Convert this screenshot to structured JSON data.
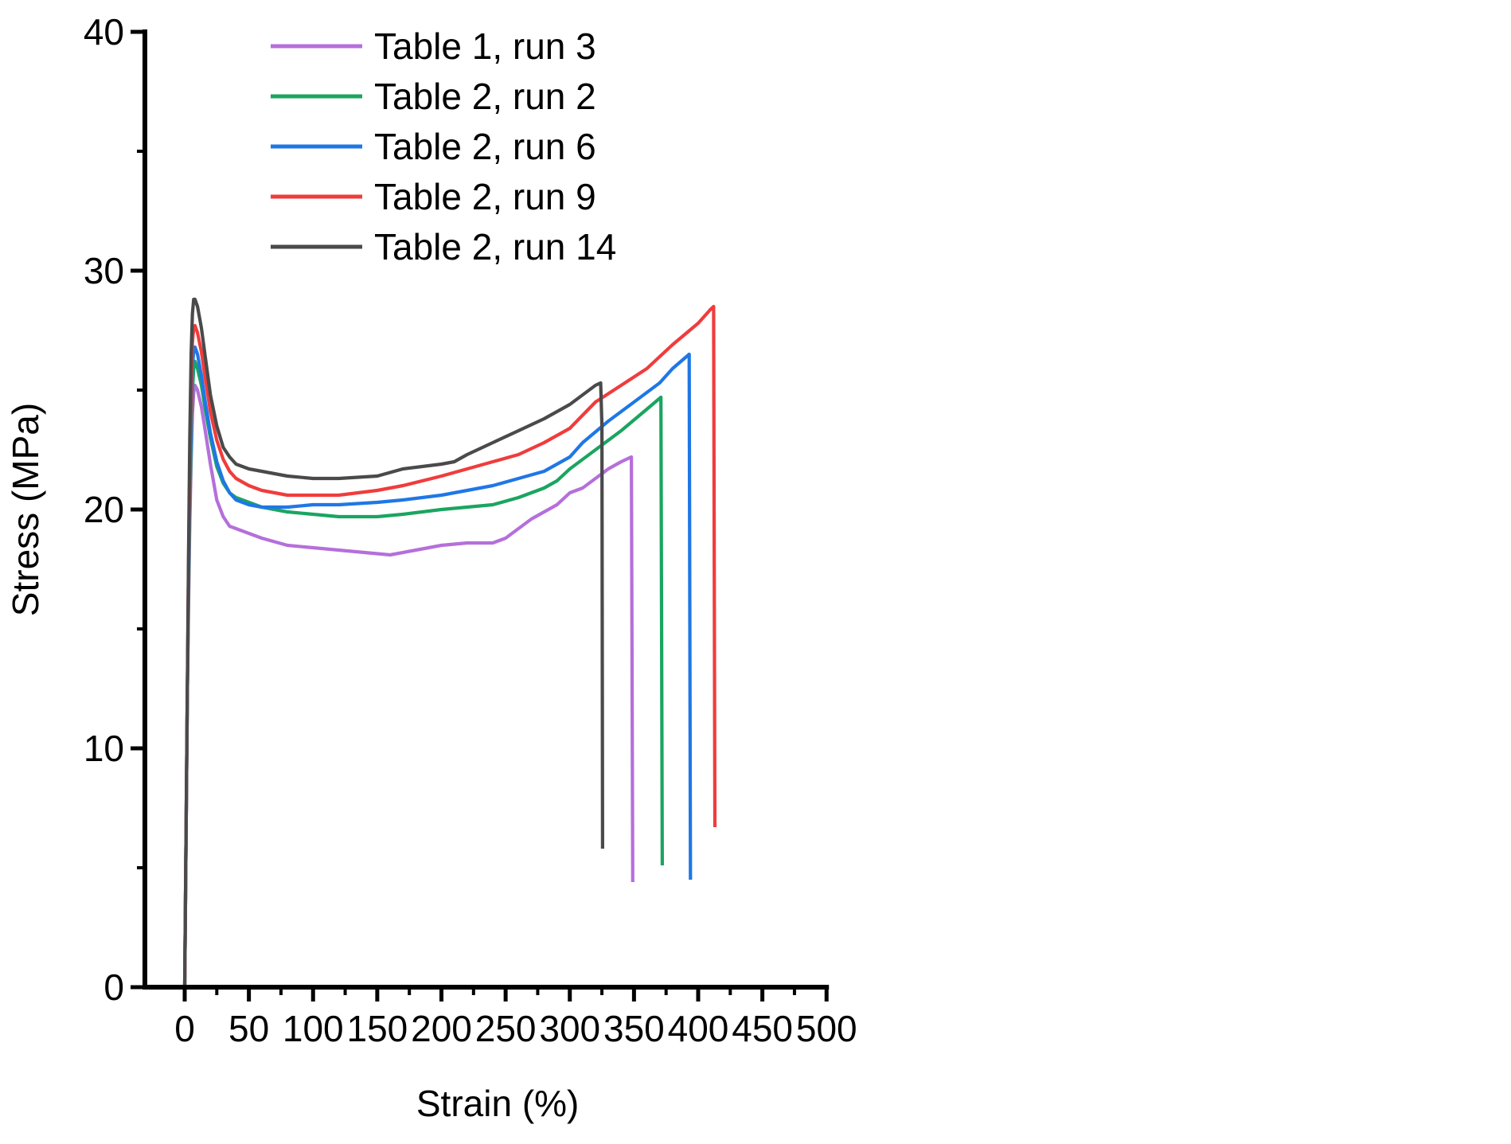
{
  "chart_data": {
    "type": "line",
    "title": "",
    "xlabel": "Strain (%)",
    "ylabel": "Stress (MPa)",
    "xlim": [
      -10,
      500
    ],
    "ylim": [
      0,
      40
    ],
    "x_ticks": [
      0,
      50,
      100,
      150,
      200,
      250,
      300,
      350,
      400,
      450,
      500
    ],
    "y_ticks": [
      0,
      10,
      20,
      30,
      40
    ],
    "x_tick_labels": [
      "0",
      "50",
      "100",
      "150",
      "200",
      "250",
      "300",
      "350",
      "400",
      "450",
      "500"
    ],
    "y_tick_labels": [
      "0",
      "10",
      "20",
      "30",
      "40"
    ],
    "grid": false,
    "legend_position": "top-left",
    "series": [
      {
        "name": "Table 1, run 3",
        "color": "#b56fdb",
        "points": [
          [
            0,
            0
          ],
          [
            1,
            6
          ],
          [
            2,
            12
          ],
          [
            3,
            16
          ],
          [
            4,
            19.5
          ],
          [
            5,
            22
          ],
          [
            6,
            24
          ],
          [
            7,
            24.9
          ],
          [
            8,
            25.2
          ],
          [
            10,
            25
          ],
          [
            13,
            24.3
          ],
          [
            16,
            23.3
          ],
          [
            20,
            21.9
          ],
          [
            25,
            20.4
          ],
          [
            30,
            19.7
          ],
          [
            35,
            19.3
          ],
          [
            40,
            19.2
          ],
          [
            60,
            18.8
          ],
          [
            80,
            18.5
          ],
          [
            100,
            18.4
          ],
          [
            120,
            18.3
          ],
          [
            140,
            18.2
          ],
          [
            160,
            18.1
          ],
          [
            180,
            18.3
          ],
          [
            200,
            18.5
          ],
          [
            220,
            18.6
          ],
          [
            240,
            18.6
          ],
          [
            250,
            18.8
          ],
          [
            270,
            19.6
          ],
          [
            290,
            20.2
          ],
          [
            300,
            20.7
          ],
          [
            310,
            20.9
          ],
          [
            320,
            21.3
          ],
          [
            330,
            21.7
          ],
          [
            340,
            22.0
          ],
          [
            348,
            22.2
          ],
          [
            349,
            4.4
          ]
        ]
      },
      {
        "name": "Table 2, run 2",
        "color": "#1aa560",
        "points": [
          [
            0,
            0
          ],
          [
            1,
            6
          ],
          [
            2,
            12
          ],
          [
            3,
            16.5
          ],
          [
            4,
            20
          ],
          [
            5,
            23
          ],
          [
            6,
            25
          ],
          [
            7,
            25.9
          ],
          [
            8,
            26.2
          ],
          [
            10,
            25.9
          ],
          [
            13,
            25.2
          ],
          [
            16,
            24.2
          ],
          [
            20,
            23
          ],
          [
            25,
            21.8
          ],
          [
            30,
            21.1
          ],
          [
            35,
            20.7
          ],
          [
            40,
            20.5
          ],
          [
            50,
            20.3
          ],
          [
            60,
            20.1
          ],
          [
            80,
            19.9
          ],
          [
            100,
            19.8
          ],
          [
            120,
            19.7
          ],
          [
            150,
            19.7
          ],
          [
            170,
            19.8
          ],
          [
            200,
            20.0
          ],
          [
            220,
            20.1
          ],
          [
            240,
            20.2
          ],
          [
            260,
            20.5
          ],
          [
            280,
            20.9
          ],
          [
            290,
            21.2
          ],
          [
            300,
            21.7
          ],
          [
            320,
            22.5
          ],
          [
            340,
            23.3
          ],
          [
            360,
            24.2
          ],
          [
            371,
            24.7
          ],
          [
            372,
            5.1
          ]
        ]
      },
      {
        "name": "Table 2, run 6",
        "color": "#1f77e6",
        "points": [
          [
            0,
            0
          ],
          [
            1,
            6
          ],
          [
            2,
            12
          ],
          [
            3,
            17
          ],
          [
            4,
            21
          ],
          [
            5,
            24
          ],
          [
            6,
            26
          ],
          [
            7,
            26.6
          ],
          [
            8,
            26.8
          ],
          [
            10,
            26.5
          ],
          [
            13,
            25.6
          ],
          [
            16,
            24.5
          ],
          [
            20,
            23.2
          ],
          [
            25,
            22
          ],
          [
            30,
            21.2
          ],
          [
            35,
            20.7
          ],
          [
            40,
            20.4
          ],
          [
            50,
            20.2
          ],
          [
            60,
            20.1
          ],
          [
            80,
            20.1
          ],
          [
            100,
            20.2
          ],
          [
            120,
            20.2
          ],
          [
            150,
            20.3
          ],
          [
            170,
            20.4
          ],
          [
            200,
            20.6
          ],
          [
            220,
            20.8
          ],
          [
            240,
            21.0
          ],
          [
            260,
            21.3
          ],
          [
            280,
            21.6
          ],
          [
            300,
            22.2
          ],
          [
            310,
            22.8
          ],
          [
            330,
            23.7
          ],
          [
            350,
            24.5
          ],
          [
            370,
            25.3
          ],
          [
            380,
            25.9
          ],
          [
            393,
            26.5
          ],
          [
            394,
            4.5
          ]
        ]
      },
      {
        "name": "Table 2, run 9",
        "color": "#f03c3c",
        "points": [
          [
            0,
            0
          ],
          [
            1,
            6
          ],
          [
            2,
            12
          ],
          [
            3,
            17.5
          ],
          [
            4,
            22
          ],
          [
            5,
            25
          ],
          [
            6,
            27
          ],
          [
            7,
            27.6
          ],
          [
            8,
            27.7
          ],
          [
            10,
            27.4
          ],
          [
            13,
            26.6
          ],
          [
            16,
            25.5
          ],
          [
            20,
            24.1
          ],
          [
            25,
            22.9
          ],
          [
            30,
            22.1
          ],
          [
            35,
            21.6
          ],
          [
            40,
            21.3
          ],
          [
            50,
            21.0
          ],
          [
            60,
            20.8
          ],
          [
            80,
            20.6
          ],
          [
            100,
            20.6
          ],
          [
            120,
            20.6
          ],
          [
            150,
            20.8
          ],
          [
            170,
            21.0
          ],
          [
            200,
            21.4
          ],
          [
            220,
            21.7
          ],
          [
            240,
            22.0
          ],
          [
            260,
            22.3
          ],
          [
            280,
            22.8
          ],
          [
            300,
            23.4
          ],
          [
            320,
            24.5
          ],
          [
            340,
            25.2
          ],
          [
            360,
            25.9
          ],
          [
            380,
            26.9
          ],
          [
            400,
            27.8
          ],
          [
            410,
            28.4
          ],
          [
            412,
            28.5
          ],
          [
            413,
            6.7
          ]
        ]
      },
      {
        "name": "Table 2, run 14",
        "color": "#4a4a4a",
        "points": [
          [
            0,
            0
          ],
          [
            1,
            6
          ],
          [
            2,
            12
          ],
          [
            3,
            18
          ],
          [
            4,
            23
          ],
          [
            5,
            26.5
          ],
          [
            6,
            28.2
          ],
          [
            7,
            28.8
          ],
          [
            8,
            28.8
          ],
          [
            10,
            28.5
          ],
          [
            13,
            27.6
          ],
          [
            16,
            26.4
          ],
          [
            20,
            24.8
          ],
          [
            25,
            23.5
          ],
          [
            30,
            22.6
          ],
          [
            35,
            22.2
          ],
          [
            40,
            21.9
          ],
          [
            50,
            21.7
          ],
          [
            60,
            21.6
          ],
          [
            80,
            21.4
          ],
          [
            100,
            21.3
          ],
          [
            120,
            21.3
          ],
          [
            150,
            21.4
          ],
          [
            170,
            21.7
          ],
          [
            200,
            21.9
          ],
          [
            210,
            22.0
          ],
          [
            220,
            22.3
          ],
          [
            240,
            22.8
          ],
          [
            260,
            23.3
          ],
          [
            280,
            23.8
          ],
          [
            300,
            24.4
          ],
          [
            310,
            24.8
          ],
          [
            320,
            25.2
          ],
          [
            324,
            25.3
          ],
          [
            325,
            23.5
          ],
          [
            325.5,
            5.8
          ]
        ]
      }
    ]
  }
}
